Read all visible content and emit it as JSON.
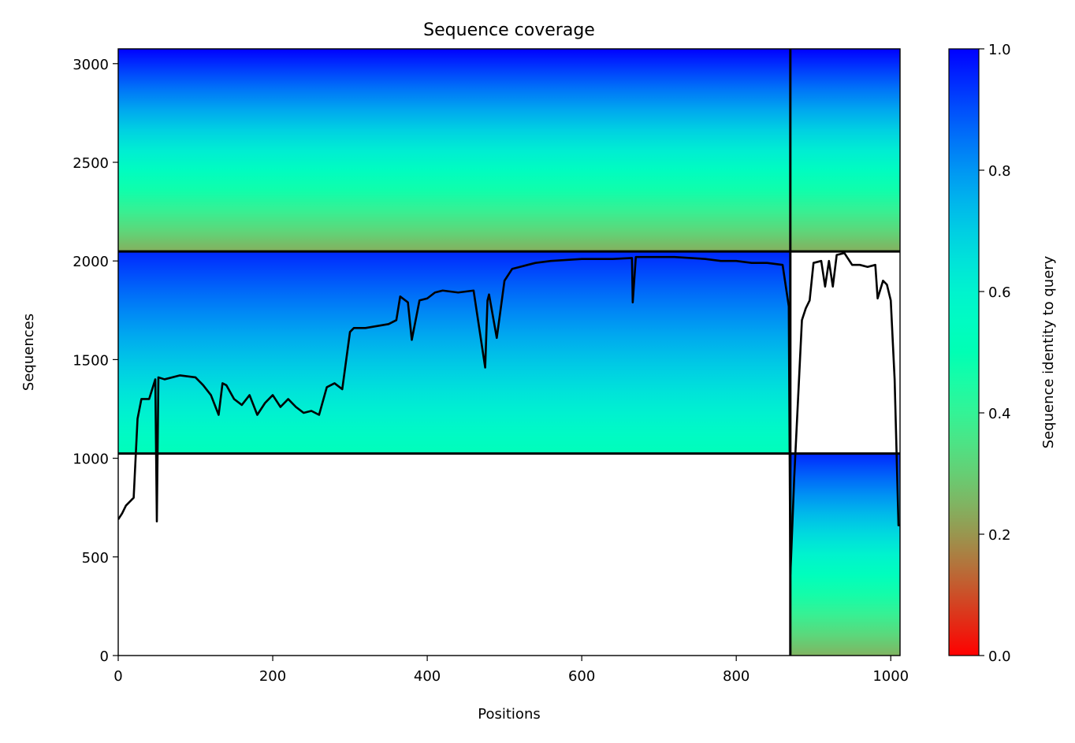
{
  "chart_data": {
    "type": "heatmap",
    "title": "Sequence coverage",
    "xlabel": "Positions",
    "ylabel": "Sequences",
    "xlim": [
      0,
      1012
    ],
    "ylim": [
      0,
      3075
    ],
    "xticks": [
      0,
      200,
      400,
      600,
      800,
      1000
    ],
    "yticks": [
      0,
      500,
      1000,
      1500,
      2000,
      2500,
      3000
    ],
    "colorbar": {
      "label": "Sequence identity to query",
      "range": [
        0,
        1
      ],
      "ticks": [
        "0.0",
        "0.2",
        "0.4",
        "0.6",
        "0.8",
        "1.0"
      ],
      "colormap": "rainbow_r"
    },
    "chain_boundaries_x": [
      870
    ],
    "block_boundaries_y": [
      1024,
      2048
    ],
    "blocks": [
      {
        "name": "paired",
        "rows": [
          2048,
          3075
        ],
        "segments": [
          {
            "x": [
              0,
              870
            ],
            "identity_top": 1.0,
            "identity_bottom": 0.24
          },
          {
            "x": [
              870,
              1012
            ],
            "identity_top": 1.0,
            "identity_bottom": 0.24
          }
        ]
      },
      {
        "name": "chain_1_unpaired",
        "rows": [
          1024,
          2048
        ],
        "segments": [
          {
            "x": [
              0,
              870
            ],
            "identity_top": 0.95,
            "identity_bottom": 0.52
          }
        ]
      },
      {
        "name": "chain_2_unpaired",
        "rows": [
          0,
          1024
        ],
        "segments": [
          {
            "x": [
              870,
              1012
            ],
            "identity_top": 0.95,
            "identity_bottom": 0.25
          }
        ]
      }
    ],
    "coverage_line": {
      "color": "#000000",
      "x": [
        0,
        5,
        10,
        20,
        25,
        30,
        40,
        48,
        50,
        52,
        60,
        80,
        100,
        110,
        120,
        130,
        135,
        140,
        150,
        160,
        170,
        180,
        190,
        200,
        210,
        220,
        230,
        240,
        250,
        260,
        270,
        280,
        290,
        300,
        305,
        320,
        350,
        360,
        365,
        375,
        380,
        390,
        400,
        410,
        420,
        440,
        460,
        475,
        478,
        480,
        490,
        500,
        510,
        520,
        530,
        540,
        560,
        600,
        640,
        665,
        666,
        670,
        690,
        720,
        760,
        780,
        800,
        820,
        840,
        860,
        868,
        870,
        871,
        875,
        880,
        885,
        890,
        895,
        900,
        910,
        915,
        920,
        925,
        930,
        940,
        950,
        960,
        970,
        980,
        983,
        990,
        995,
        1000,
        1005,
        1010,
        1012
      ],
      "y": [
        690,
        720,
        760,
        800,
        1200,
        1300,
        1300,
        1400,
        680,
        1410,
        1400,
        1420,
        1410,
        1370,
        1320,
        1220,
        1380,
        1370,
        1300,
        1270,
        1320,
        1220,
        1280,
        1320,
        1260,
        1300,
        1260,
        1230,
        1240,
        1220,
        1360,
        1380,
        1350,
        1640,
        1660,
        1660,
        1680,
        1700,
        1820,
        1790,
        1600,
        1800,
        1810,
        1840,
        1850,
        1840,
        1850,
        1460,
        1800,
        1830,
        1610,
        1900,
        1960,
        1970,
        1980,
        1990,
        2000,
        2010,
        2010,
        2015,
        1790,
        2020,
        2020,
        2020,
        2010,
        2000,
        2000,
        1990,
        1990,
        1980,
        1770,
        410,
        500,
        900,
        1300,
        1700,
        1760,
        1800,
        1990,
        2000,
        1870,
        2000,
        1870,
        2030,
        2040,
        1980,
        1980,
        1970,
        1980,
        1810,
        1900,
        1880,
        1800,
        1400,
        660,
        660
      ]
    }
  }
}
